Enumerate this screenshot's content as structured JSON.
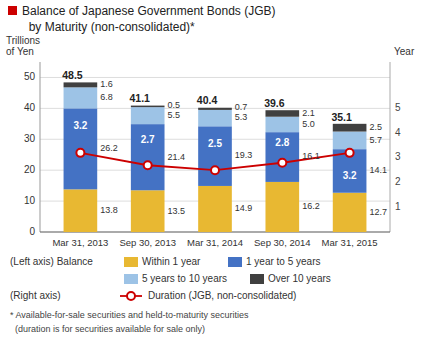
{
  "chart_data": {
    "type": "bar",
    "stacked": true,
    "title": "Balance of Japanese Government Bonds (JGB)",
    "subtitle": "  by Maturity (non-consolidated)*",
    "ylabel": [
      "Trillions",
      "of Yen"
    ],
    "y2label": "Year",
    "categories": [
      "Mar 31, 2013",
      "Sep 30, 2013",
      "Mar 31, 2014",
      "Sep 30, 2014",
      "Mar 31, 2015"
    ],
    "series": [
      {
        "name": "Within 1 year",
        "color": "#e8b832",
        "values": [
          13.8,
          13.5,
          14.9,
          16.2,
          12.7
        ]
      },
      {
        "name": "1 year to 5 years",
        "color": "#4472c4",
        "values": [
          26.2,
          21.4,
          19.3,
          16.1,
          14.1
        ]
      },
      {
        "name": "5 years to 10 years",
        "color": "#9dc3e6",
        "values": [
          6.8,
          5.5,
          5.3,
          5.0,
          5.7
        ],
        "value_labels": [
          "6.8",
          "5.5",
          "5.3",
          "5.0",
          "5.7"
        ]
      },
      {
        "name": "Over 10 years",
        "color": "#404040",
        "values": [
          1.6,
          0.5,
          0.7,
          2.1,
          2.5
        ]
      },
      {
        "name": "Duration (JGB, non-consolidated)",
        "type": "line",
        "axis": "y2",
        "color": "#cc0000",
        "marker": "circle",
        "values": [
          3.2,
          2.7,
          2.5,
          2.8,
          3.2
        ]
      }
    ],
    "totals": [
      48.5,
      41.1,
      40.4,
      39.6,
      35.1
    ],
    "ylim": [
      0,
      55
    ],
    "yticks": [
      0,
      10,
      20,
      30,
      40,
      50
    ],
    "y2lim": [
      0,
      6.875
    ],
    "y2ticks": [
      1,
      2,
      3,
      4,
      5
    ],
    "grid": true,
    "data_labels": true,
    "legend": "bottom",
    "annotations": [
      "(Left axis) Balance",
      "(Right axis)",
      "* Available-for-sale securities and held-to-maturity securities",
      "  (duration is for securities available for sale only)"
    ]
  }
}
